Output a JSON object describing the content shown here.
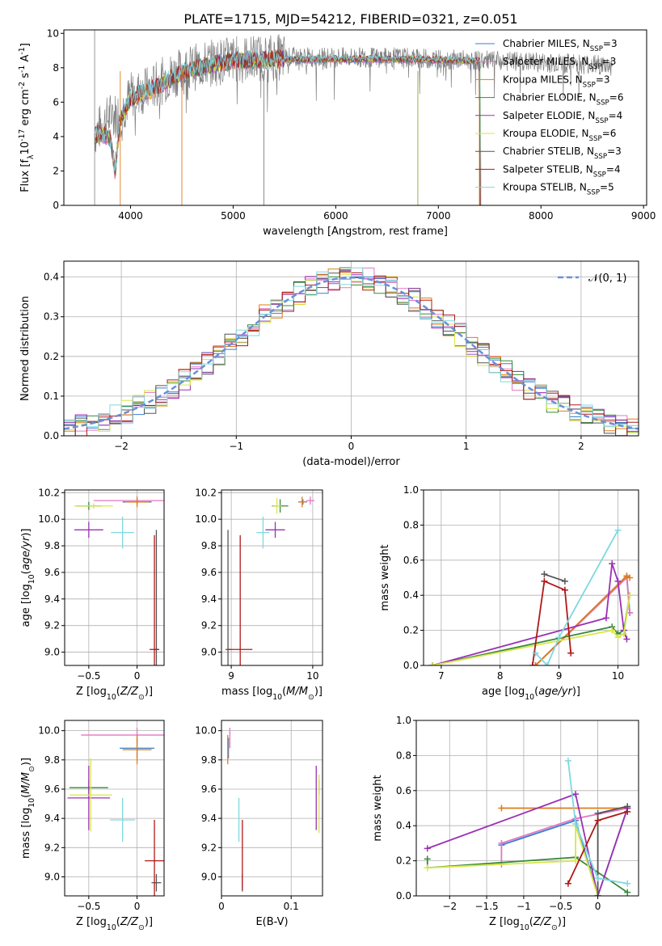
{
  "figure_title": "PLATE=1715, MJD=54212, FIBERID=0321, z=0.051",
  "colors": {
    "Chabrier MILES": "#3b7fd0",
    "Salpeter MILES": "#e377c2",
    "Kroupa MILES": "#e07b1a",
    "Chabrier ELODIE": "#3a8a3a",
    "Salpeter ELODIE": "#9b30b5",
    "Kroupa ELODIE": "#d9e64a",
    "Chabrier STELIB": "#555555",
    "Salpeter STELIB": "#b01818",
    "Kroupa STELIB": "#7fd8e0",
    "normal": "#6a8fd8"
  },
  "chart_data": [
    {
      "type": "line",
      "panel": "spectrum",
      "xlabel": "wavelength [Angstrom, rest frame]",
      "ylabel": "Flux [f$_\\lambda$10$^{-17}$ erg cm$^{-2}$ s$^{-1}$ A$^{-1}$]",
      "xlim": [
        3350,
        9030
      ],
      "ylim": [
        0,
        10.2
      ],
      "xticks": [
        4000,
        5000,
        6000,
        7000,
        8000,
        9000
      ],
      "yticks": [
        0,
        2,
        4,
        6,
        8,
        10
      ],
      "legend": [
        "Chabrier MILES, N$_{SSP}$=3",
        "Salpeter MILES, N$_{SSP}$=3",
        "Kroupa MILES, N$_{SSP}$=3",
        "Chabrier ELODIE, N$_{SSP}$=6",
        "Salpeter ELODIE, N$_{SSP}$=4",
        "Kroupa ELODIE, N$_{SSP}$=6",
        "Chabrier STELIB, N$_{SSP}$=3",
        "Salpeter STELIB, N$_{SSP}$=4",
        "Kroupa STELIB, N$_{SSP}$=5"
      ],
      "legend_keys": [
        "Chabrier MILES",
        "Salpeter MILES",
        "Kroupa MILES",
        "Chabrier ELODIE",
        "Salpeter ELODIE",
        "Kroupa ELODIE",
        "Chabrier STELIB",
        "Salpeter STELIB",
        "Kroupa STELIB"
      ],
      "legend_loc": "right",
      "data_continuum": [
        [
          3650,
          4.2
        ],
        [
          3700,
          4.5
        ],
        [
          3800,
          5.2
        ],
        [
          3900,
          5.3
        ],
        [
          4000,
          6.4
        ],
        [
          4100,
          6.6
        ],
        [
          4200,
          6.8
        ],
        [
          4300,
          7.2
        ],
        [
          4400,
          7.6
        ],
        [
          4500,
          7.8
        ],
        [
          4600,
          8.0
        ],
        [
          4800,
          8.3
        ],
        [
          5000,
          8.5
        ],
        [
          5300,
          8.6
        ],
        [
          5600,
          8.6
        ],
        [
          6000,
          8.6
        ],
        [
          6500,
          8.6
        ],
        [
          7000,
          8.5
        ],
        [
          7500,
          8.4
        ],
        [
          8000,
          8.3
        ],
        [
          8500,
          8.2
        ],
        [
          8700,
          8.1
        ]
      ],
      "model_continuum": [
        [
          3650,
          4.0
        ],
        [
          3700,
          4.2
        ],
        [
          3800,
          3.9
        ],
        [
          3850,
          2.0
        ],
        [
          3900,
          5.0
        ],
        [
          4000,
          6.2
        ],
        [
          4100,
          6.5
        ],
        [
          4200,
          6.7
        ],
        [
          4300,
          7.0
        ],
        [
          4400,
          7.4
        ],
        [
          4500,
          7.7
        ],
        [
          4600,
          7.9
        ],
        [
          4800,
          8.2
        ],
        [
          5000,
          8.4
        ],
        [
          5300,
          8.5
        ],
        [
          5600,
          8.5
        ],
        [
          6000,
          8.5
        ],
        [
          6500,
          8.5
        ],
        [
          7000,
          8.45
        ],
        [
          7400,
          8.4
        ]
      ],
      "spikes": [
        [
          3650,
          10.2
        ],
        [
          3900,
          0
        ],
        [
          4500,
          0
        ],
        [
          5300,
          0
        ],
        [
          6800,
          0
        ],
        [
          7400,
          0
        ]
      ]
    },
    {
      "type": "bar",
      "panel": "residual_histogram",
      "xlabel": "(data-model)/error",
      "ylabel": "Normed distribution",
      "xlim": [
        -2.5,
        2.5
      ],
      "ylim": [
        0,
        0.44
      ],
      "xticks": [
        -2,
        -1,
        0,
        1,
        2
      ],
      "yticks": [
        0.0,
        0.1,
        0.2,
        0.3,
        0.4
      ],
      "grid": true,
      "legend": "$\\mathcal{N}(0,1)$",
      "legend_loc": "top-right",
      "bin_width": 0.1
    },
    {
      "type": "scatter",
      "panel": "age_vs_Z",
      "xlabel": "Z [log$_{10}$($Z/Z_\\odot$)]",
      "ylabel": "age  [log$_{10}$($age/yr$)]",
      "xlim": [
        -0.75,
        0.28
      ],
      "ylim": [
        8.9,
        10.22
      ],
      "xticks": [
        -0.5,
        0.0
      ],
      "yticks": [
        9.0,
        9.2,
        9.4,
        9.6,
        9.8,
        10.0,
        10.2
      ],
      "grid": true,
      "points": [
        {
          "key": "Chabrier MILES",
          "x": 0.0,
          "y": 10.13,
          "xerr": 0.15,
          "yerr": 0.02
        },
        {
          "key": "Salpeter MILES",
          "x": 0.0,
          "y": 10.14,
          "xerr": 0.45,
          "yerr": 0.03
        },
        {
          "key": "Kroupa MILES",
          "x": 0.0,
          "y": 10.13,
          "xerr": 0.12,
          "yerr": 0.04
        },
        {
          "key": "Chabrier ELODIE",
          "x": -0.5,
          "y": 10.1,
          "xerr": 0.13,
          "yerr": 0.03
        },
        {
          "key": "Salpeter ELODIE",
          "x": -0.5,
          "y": 9.92,
          "xerr": 0.15,
          "yerr": 0.06
        },
        {
          "key": "Kroupa ELODIE",
          "x": -0.45,
          "y": 10.1,
          "xerr": 0.2,
          "yerr": 0.02
        },
        {
          "key": "Chabrier STELIB",
          "x": 0.2,
          "y": 9.02,
          "xerr": 0.02,
          "yerr": 0.9
        },
        {
          "key": "Salpeter STELIB",
          "x": 0.18,
          "y": 9.02,
          "xerr": 0.05,
          "yerr": 0.86
        },
        {
          "key": "Kroupa STELIB",
          "x": -0.15,
          "y": 9.9,
          "xerr": 0.12,
          "yerr": 0.12
        }
      ]
    },
    {
      "type": "scatter",
      "panel": "age_vs_mass",
      "xlabel": "mass [log$_{10}$($M/M_\\odot$)]",
      "xlim": [
        8.88,
        10.12
      ],
      "ylim": [
        8.9,
        10.22
      ],
      "xticks": [
        9,
        10
      ],
      "yticks": [
        9.0,
        9.2,
        9.4,
        9.6,
        9.8,
        10.0,
        10.2
      ],
      "grid": true,
      "points": [
        {
          "key": "Chabrier MILES",
          "x": 9.88,
          "y": 10.13,
          "xerr": 0.05,
          "yerr": 0.02
        },
        {
          "key": "Salpeter MILES",
          "x": 9.97,
          "y": 10.14,
          "xerr": 0.05,
          "yerr": 0.03
        },
        {
          "key": "Kroupa MILES",
          "x": 9.87,
          "y": 10.13,
          "xerr": 0.05,
          "yerr": 0.04
        },
        {
          "key": "Chabrier ELODIE",
          "x": 9.6,
          "y": 10.1,
          "xerr": 0.1,
          "yerr": 0.05
        },
        {
          "key": "Salpeter ELODIE",
          "x": 9.54,
          "y": 9.92,
          "xerr": 0.12,
          "yerr": 0.06
        },
        {
          "key": "Kroupa ELODIE",
          "x": 9.56,
          "y": 10.1,
          "xerr": 0.05,
          "yerr": 0.06
        },
        {
          "key": "Chabrier STELIB",
          "x": 8.96,
          "y": 9.02,
          "xerr": 0.03,
          "yerr": 0.9
        },
        {
          "key": "Salpeter STELIB",
          "x": 9.11,
          "y": 9.02,
          "xerr": 0.15,
          "yerr": 0.86
        },
        {
          "key": "Kroupa STELIB",
          "x": 9.39,
          "y": 9.9,
          "xerr": 0.08,
          "yerr": 0.12
        }
      ]
    },
    {
      "type": "line",
      "panel": "mass_weight_vs_age",
      "xlabel": "age  [log$_{10}$($age/yr$)]",
      "ylabel": "mass weight",
      "xlim": [
        6.7,
        10.35
      ],
      "ylim": [
        0,
        1
      ],
      "xticks": [
        7,
        8,
        9,
        10
      ],
      "yticks": [
        0.0,
        0.2,
        0.4,
        0.6,
        0.8,
        1.0
      ],
      "grid": true,
      "series": [
        {
          "key": "Chabrier MILES",
          "x": [
            8.6,
            10.15,
            10.2
          ],
          "y": [
            0.0,
            0.51,
            0.3
          ]
        },
        {
          "key": "Salpeter MILES",
          "x": [
            8.6,
            10.15,
            10.2
          ],
          "y": [
            0.0,
            0.5,
            0.3
          ]
        },
        {
          "key": "Kroupa MILES",
          "x": [
            8.6,
            10.15,
            10.2
          ],
          "y": [
            0.0,
            0.51,
            0.5
          ]
        },
        {
          "key": "Chabrier ELODIE",
          "x": [
            6.85,
            9.9,
            10.0,
            10.1,
            10.2
          ],
          "y": [
            0.0,
            0.22,
            0.18,
            0.2,
            0.4
          ]
        },
        {
          "key": "Salpeter ELODIE",
          "x": [
            6.85,
            9.8,
            9.9,
            10.0,
            10.1,
            10.15
          ],
          "y": [
            0.0,
            0.27,
            0.58,
            0.48,
            0.2,
            0.15
          ]
        },
        {
          "key": "Kroupa ELODIE",
          "x": [
            6.85,
            9.9,
            10.0,
            10.1,
            10.2
          ],
          "y": [
            0.0,
            0.2,
            0.16,
            0.18,
            0.4
          ]
        },
        {
          "key": "Chabrier STELIB",
          "x": [
            8.75,
            9.1
          ],
          "y": [
            0.52,
            0.48
          ]
        },
        {
          "key": "Salpeter STELIB",
          "x": [
            8.55,
            8.75,
            9.1,
            9.2
          ],
          "y": [
            0.0,
            0.48,
            0.43,
            0.07
          ]
        },
        {
          "key": "Kroupa STELIB",
          "x": [
            8.6,
            8.8,
            9.0,
            10.0
          ],
          "y": [
            0.07,
            0.0,
            0.16,
            0.77
          ]
        }
      ]
    },
    {
      "type": "scatter",
      "panel": "mass_vs_Z",
      "xlabel": "Z [log$_{10}$($Z/Z_\\odot$)]",
      "ylabel": "mass [log$_{10}$($M/M_\\odot$)]",
      "xlim": [
        -0.75,
        0.28
      ],
      "ylim": [
        8.87,
        10.07
      ],
      "xticks": [
        -0.5,
        0.0
      ],
      "yticks": [
        9.0,
        9.2,
        9.4,
        9.6,
        9.8,
        10.0
      ],
      "grid": true,
      "points": [
        {
          "key": "Chabrier MILES",
          "x": 0.0,
          "y": 9.88,
          "xerr": 0.18,
          "yerr": 0.07
        },
        {
          "key": "Salpeter MILES",
          "x": 0.0,
          "y": 9.97,
          "xerr": 0.58,
          "yerr": 0.05
        },
        {
          "key": "Kroupa MILES",
          "x": 0.0,
          "y": 9.87,
          "xerr": 0.15,
          "yerr": 0.1
        },
        {
          "key": "Chabrier ELODIE",
          "x": -0.5,
          "y": 9.61,
          "xerr": 0.2,
          "yerr": 0.05
        },
        {
          "key": "Salpeter ELODIE",
          "x": -0.5,
          "y": 9.54,
          "xerr": 0.22,
          "yerr": 0.22
        },
        {
          "key": "Kroupa ELODIE",
          "x": -0.48,
          "y": 9.56,
          "xerr": 0.22,
          "yerr": 0.25
        },
        {
          "key": "Chabrier STELIB",
          "x": 0.2,
          "y": 8.96,
          "xerr": 0.05,
          "yerr": 0.06
        },
        {
          "key": "Salpeter STELIB",
          "x": 0.18,
          "y": 9.11,
          "xerr": 0.1,
          "yerr": 0.28
        },
        {
          "key": "Kroupa STELIB",
          "x": -0.15,
          "y": 9.39,
          "xerr": 0.13,
          "yerr": 0.15
        }
      ]
    },
    {
      "type": "scatter",
      "panel": "mass_vs_EBV",
      "xlabel": "E(B-V)",
      "xlim": [
        0.0,
        0.145
      ],
      "ylim": [
        8.87,
        10.07
      ],
      "xticks": [
        0.0,
        0.1
      ],
      "yticks": [
        9.0,
        9.2,
        9.4,
        9.6,
        9.8,
        10.0
      ],
      "grid": true,
      "points": [
        {
          "key": "Chabrier MILES",
          "x": 0.01,
          "y": 9.88,
          "yerr": 0.07
        },
        {
          "key": "Salpeter MILES",
          "x": 0.012,
          "y": 9.95,
          "yerr": 0.07
        },
        {
          "key": "Kroupa MILES",
          "x": 0.009,
          "y": 9.87,
          "yerr": 0.1
        },
        {
          "key": "Chabrier ELODIE",
          "x": 0.14,
          "y": 9.61,
          "yerr": 0.05
        },
        {
          "key": "Salpeter ELODIE",
          "x": 0.136,
          "y": 9.54,
          "yerr": 0.22
        },
        {
          "key": "Kroupa ELODIE",
          "x": 0.14,
          "y": 9.5,
          "yerr": 0.2
        },
        {
          "key": "Chabrier STELIB",
          "x": 0.03,
          "y": 8.96,
          "yerr": 0.06
        },
        {
          "key": "Salpeter STELIB",
          "x": 0.03,
          "y": 9.15,
          "yerr": 0.24
        },
        {
          "key": "Kroupa STELIB",
          "x": 0.025,
          "y": 9.39,
          "yerr": 0.15
        }
      ]
    },
    {
      "type": "line",
      "panel": "mass_weight_vs_Z",
      "xlabel": "Z [log$_{10}$($Z/Z_\\odot$)]",
      "ylabel": "mass weight",
      "xlim": [
        -2.45,
        0.55
      ],
      "ylim": [
        0,
        1
      ],
      "xticks": [
        -2.0,
        -1.5,
        -1.0,
        -0.5,
        0.0
      ],
      "yticks": [
        0.0,
        0.2,
        0.4,
        0.6,
        0.8,
        1.0
      ],
      "grid": true,
      "series": [
        {
          "key": "Chabrier MILES",
          "x": [
            -1.3,
            -0.3,
            0.0,
            0.4
          ],
          "y": [
            0.29,
            0.43,
            0.0,
            0.5
          ]
        },
        {
          "key": "Salpeter MILES",
          "x": [
            -1.3,
            -1.3,
            -0.3,
            0.4
          ],
          "y": [
            0.18,
            0.3,
            0.44,
            0.5
          ]
        },
        {
          "key": "Kroupa MILES",
          "x": [
            -1.3,
            0.4
          ],
          "y": [
            0.5,
            0.5
          ]
        },
        {
          "key": "Chabrier ELODIE",
          "x": [
            -2.3,
            -2.3,
            -0.3,
            0.4
          ],
          "y": [
            0.21,
            0.16,
            0.22,
            0.02
          ]
        },
        {
          "key": "Salpeter ELODIE",
          "x": [
            -2.3,
            -0.3,
            0.0,
            0.4
          ],
          "y": [
            0.27,
            0.58,
            0.0,
            0.5
          ]
        },
        {
          "key": "Kroupa ELODIE",
          "x": [
            -2.3,
            -0.3,
            -0.3,
            0.0
          ],
          "y": [
            0.16,
            0.2,
            0.4,
            0.0
          ]
        },
        {
          "key": "Chabrier STELIB",
          "x": [
            0.0,
            0.0,
            0.4
          ],
          "y": [
            0.0,
            0.47,
            0.51
          ]
        },
        {
          "key": "Salpeter STELIB",
          "x": [
            -0.4,
            0.0,
            0.4
          ],
          "y": [
            0.07,
            0.43,
            0.48
          ]
        },
        {
          "key": "Kroupa STELIB",
          "x": [
            -0.4,
            -0.3,
            0.0,
            0.4
          ],
          "y": [
            0.77,
            0.41,
            0.1,
            0.07
          ]
        }
      ]
    }
  ]
}
